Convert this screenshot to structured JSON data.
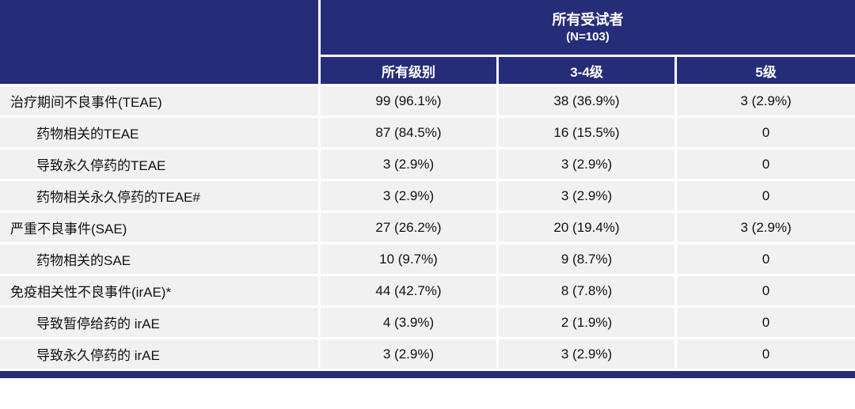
{
  "colors": {
    "header_bg": "#252d78",
    "row_bg": "#f1f1f2",
    "header_text": "#ffffff",
    "body_text": "#111111"
  },
  "chart_data": {
    "type": "table",
    "title": "",
    "group_header": {
      "title": "所有受试者",
      "subtitle": "(N=103)"
    },
    "columns": [
      "所有级别",
      "3-4级",
      "5级"
    ],
    "rows": [
      {
        "label": "治疗期间不良事件(TEAE)",
        "indent": false,
        "cells": [
          "99 (96.1%)",
          "38 (36.9%)",
          "3 (2.9%)"
        ]
      },
      {
        "label": "药物相关的TEAE",
        "indent": true,
        "cells": [
          "87 (84.5%)",
          "16 (15.5%)",
          "0"
        ]
      },
      {
        "label": "导致永久停药的TEAE",
        "indent": true,
        "cells": [
          "3 (2.9%)",
          "3 (2.9%)",
          "0"
        ]
      },
      {
        "label": "药物相关永久停药的TEAE#",
        "indent": true,
        "cells": [
          "3 (2.9%)",
          "3 (2.9%)",
          "0"
        ]
      },
      {
        "label": "严重不良事件(SAE)",
        "indent": false,
        "cells": [
          "27 (26.2%)",
          "20 (19.4%)",
          "3 (2.9%)"
        ]
      },
      {
        "label": "药物相关的SAE",
        "indent": true,
        "cells": [
          "10 (9.7%)",
          "9 (8.7%)",
          "0"
        ]
      },
      {
        "label": "免疫相关性不良事件(irAE)*",
        "indent": false,
        "cells": [
          "44 (42.7%)",
          "8 (7.8%)",
          "0"
        ]
      },
      {
        "label": "导致暂停给药的 irAE",
        "indent": true,
        "cells": [
          "4 (3.9%)",
          "2 (1.9%)",
          "0"
        ]
      },
      {
        "label": "导致永久停药的 irAE",
        "indent": true,
        "cells": [
          "3 (2.9%)",
          "3 (2.9%)",
          "0"
        ]
      }
    ]
  }
}
